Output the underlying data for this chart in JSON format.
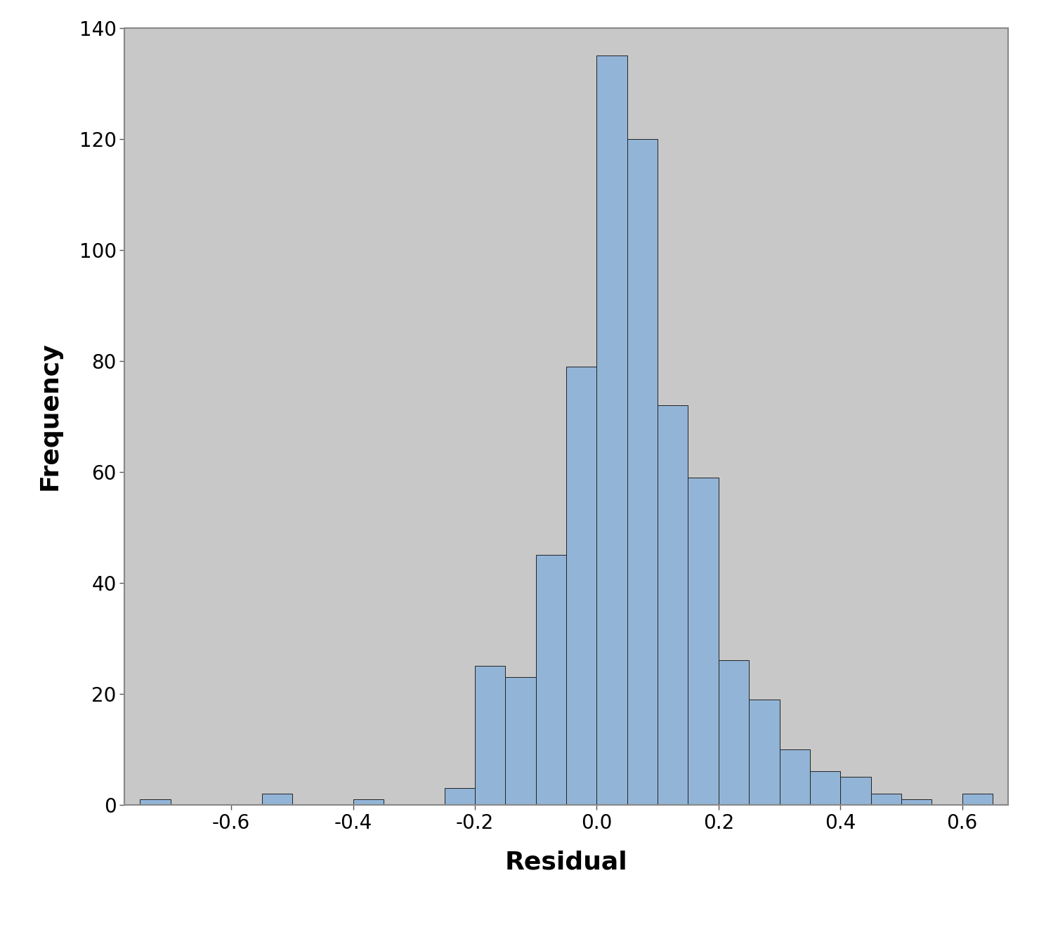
{
  "title": "",
  "xlabel": "Residual",
  "ylabel": "Frequency",
  "bar_color": "#92B4D7",
  "bar_edge_color": "#222222",
  "plot_bg_color": "#C8C8C8",
  "bin_edges": [
    -0.75,
    -0.7,
    -0.65,
    -0.6,
    -0.55,
    -0.5,
    -0.45,
    -0.4,
    -0.35,
    -0.3,
    -0.25,
    -0.2,
    -0.15,
    -0.1,
    -0.05,
    0.0,
    0.05,
    0.1,
    0.15,
    0.2,
    0.25,
    0.3,
    0.35,
    0.4,
    0.45,
    0.5,
    0.55,
    0.6,
    0.65
  ],
  "frequencies": [
    1,
    0,
    0,
    0,
    2,
    0,
    0,
    1,
    0,
    0,
    3,
    25,
    23,
    45,
    79,
    135,
    120,
    72,
    59,
    26,
    19,
    10,
    6,
    5,
    2,
    1,
    0,
    2
  ],
  "xlim": [
    -0.775,
    0.675
  ],
  "ylim": [
    0,
    140
  ],
  "yticks": [
    0,
    20,
    40,
    60,
    80,
    100,
    120,
    140
  ],
  "xticks": [
    -0.6,
    -0.4,
    -0.2,
    0.0,
    0.2,
    0.4,
    0.6
  ],
  "xlabel_fontsize": 26,
  "ylabel_fontsize": 26,
  "tick_fontsize": 20,
  "xlabel_fontweight": "bold",
  "ylabel_fontweight": "bold",
  "spine_color": "#888888",
  "spine_linewidth": 1.5
}
